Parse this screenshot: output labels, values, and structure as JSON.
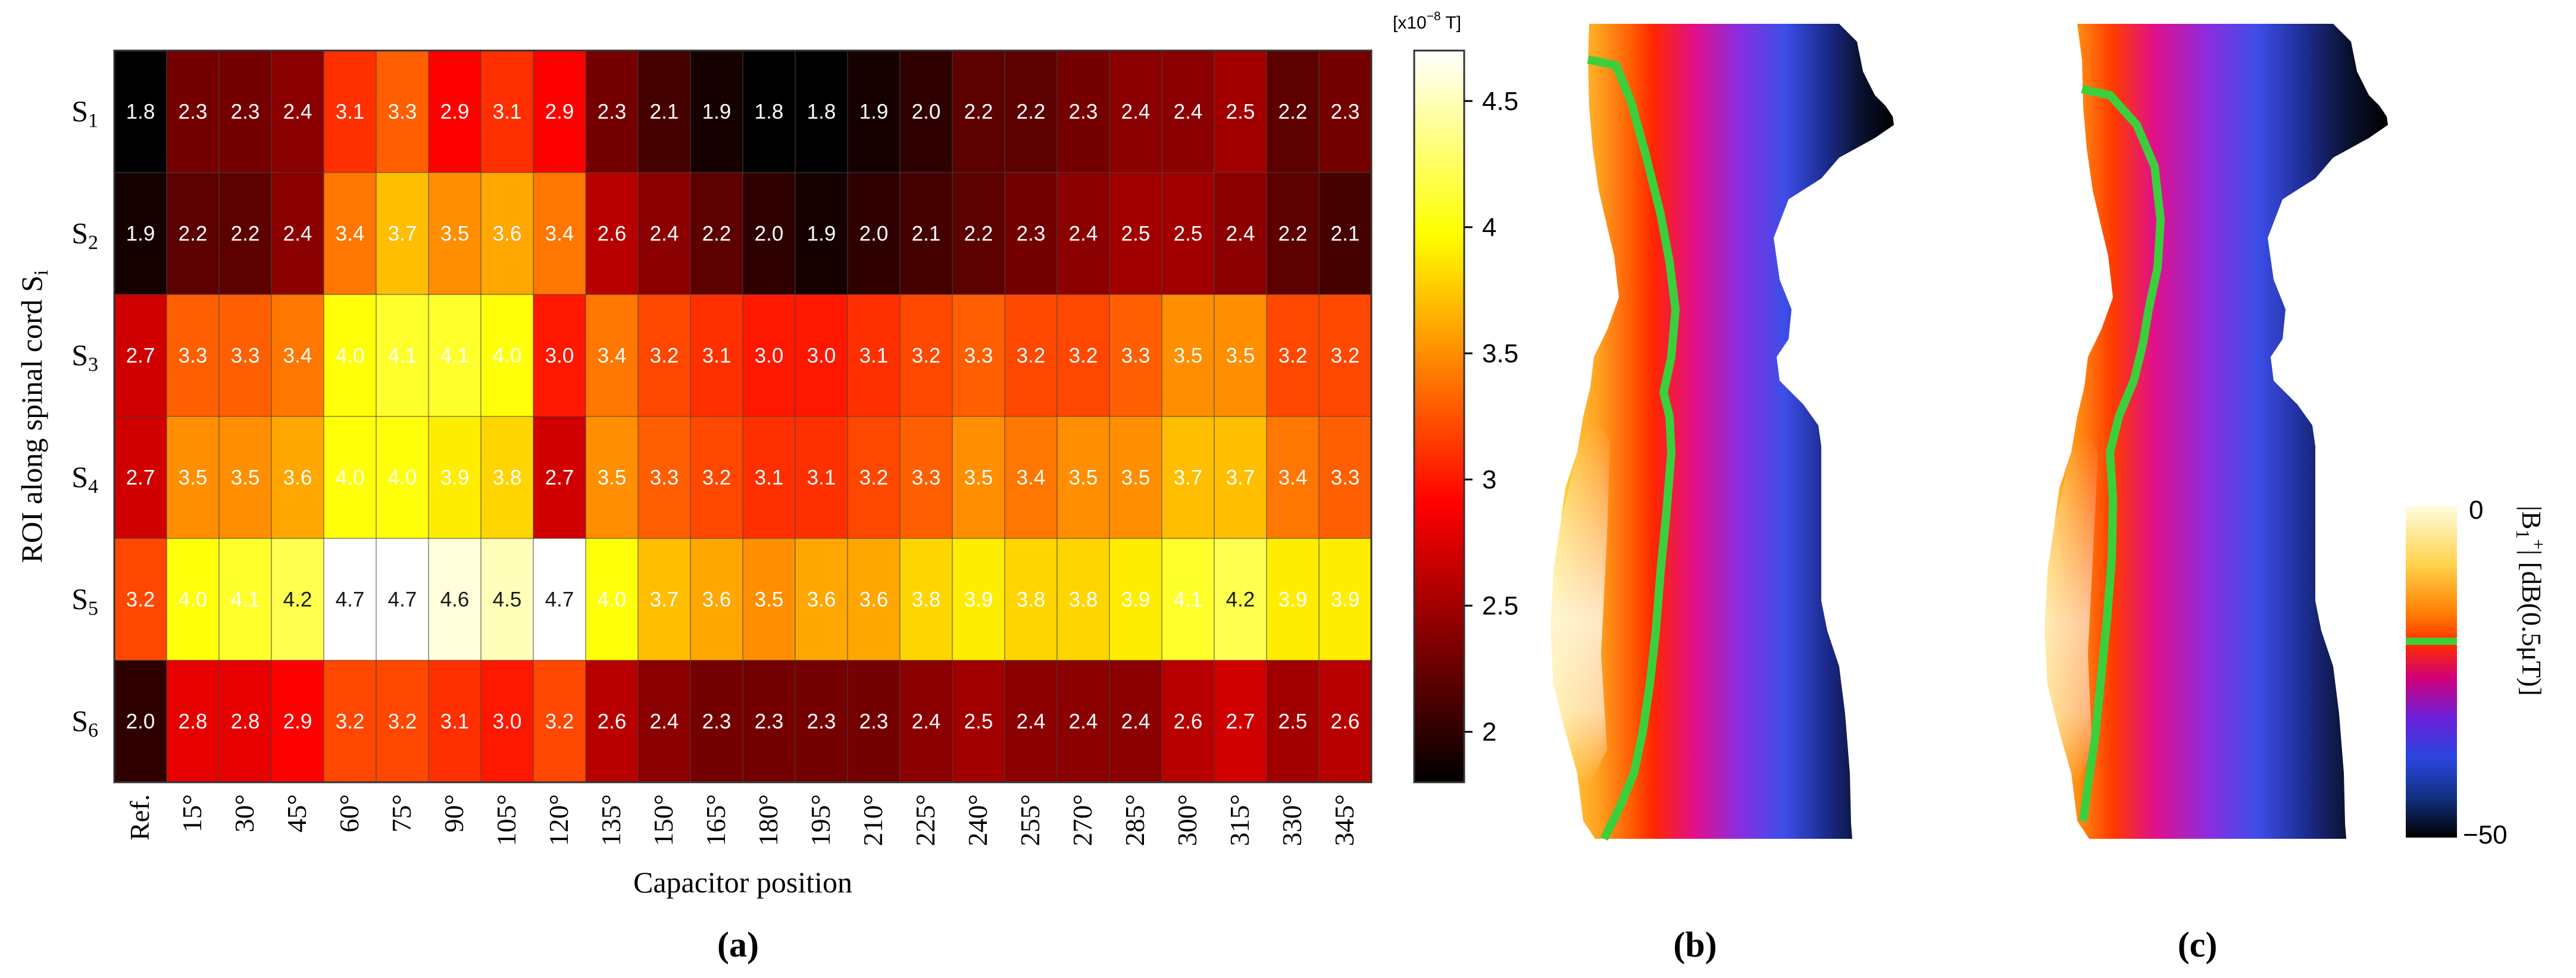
{
  "chart_data": {
    "type": "heatmap",
    "title": "",
    "xlabel": "Capacitor position",
    "ylabel": "ROI along spinal cord S",
    "ylabel_sub": "i",
    "x_categories": [
      "Ref.",
      "15°",
      "30°",
      "45°",
      "60°",
      "75°",
      "90°",
      "105°",
      "120°",
      "135°",
      "150°",
      "165°",
      "180°",
      "195°",
      "210°",
      "225°",
      "240°",
      "255°",
      "270°",
      "285°",
      "300°",
      "315°",
      "330°",
      "345°"
    ],
    "y_categories": [
      {
        "main": "S",
        "sub": "1"
      },
      {
        "main": "S",
        "sub": "2"
      },
      {
        "main": "S",
        "sub": "3"
      },
      {
        "main": "S",
        "sub": "4"
      },
      {
        "main": "S",
        "sub": "5"
      },
      {
        "main": "S",
        "sub": "6"
      }
    ],
    "values": [
      [
        1.8,
        2.3,
        2.3,
        2.4,
        3.1,
        3.3,
        2.9,
        3.1,
        2.9,
        2.3,
        2.1,
        1.9,
        1.8,
        1.8,
        1.9,
        2.0,
        2.2,
        2.2,
        2.3,
        2.4,
        2.4,
        2.5,
        2.2,
        2.3
      ],
      [
        1.9,
        2.2,
        2.2,
        2.4,
        3.4,
        3.7,
        3.5,
        3.6,
        3.4,
        2.6,
        2.4,
        2.2,
        2.0,
        1.9,
        2.0,
        2.1,
        2.2,
        2.3,
        2.4,
        2.5,
        2.5,
        2.4,
        2.2,
        2.1
      ],
      [
        2.7,
        3.3,
        3.3,
        3.4,
        4.0,
        4.1,
        4.1,
        4.0,
        3.0,
        3.4,
        3.2,
        3.1,
        3.0,
        3.0,
        3.1,
        3.2,
        3.3,
        3.2,
        3.2,
        3.3,
        3.5,
        3.5,
        3.2,
        3.2
      ],
      [
        2.7,
        3.5,
        3.5,
        3.6,
        4.0,
        4.0,
        3.9,
        3.8,
        2.7,
        3.5,
        3.3,
        3.2,
        3.1,
        3.1,
        3.2,
        3.3,
        3.5,
        3.4,
        3.5,
        3.5,
        3.7,
        3.7,
        3.4,
        3.3
      ],
      [
        3.2,
        4.0,
        4.1,
        4.2,
        4.7,
        4.7,
        4.6,
        4.5,
        4.7,
        4.0,
        3.7,
        3.6,
        3.5,
        3.6,
        3.6,
        3.8,
        3.9,
        3.8,
        3.8,
        3.9,
        4.1,
        4.2,
        3.9,
        3.9
      ],
      [
        2.0,
        2.8,
        2.8,
        2.9,
        3.2,
        3.2,
        3.1,
        3.0,
        3.2,
        2.6,
        2.4,
        2.3,
        2.3,
        2.3,
        2.3,
        2.4,
        2.5,
        2.4,
        2.4,
        2.4,
        2.6,
        2.7,
        2.5,
        2.6
      ]
    ],
    "colorbar": {
      "unit_label": "[x10",
      "unit_exp": "−8",
      "unit_tail": " T]",
      "range": [
        1.8,
        4.7
      ],
      "ticks": [
        2,
        2.5,
        3,
        3.5,
        4,
        4.5
      ],
      "colormap": "hot"
    },
    "panel_labels": [
      "(a)",
      "(b)",
      "(c)"
    ],
    "map_colorbar": {
      "label_main": "|B",
      "label_sub": "1",
      "label_sup": "+",
      "label_tail": "| [dB(0.5μT)]",
      "ticks": [
        "0",
        "−50"
      ],
      "range": [
        -50,
        0
      ]
    }
  }
}
